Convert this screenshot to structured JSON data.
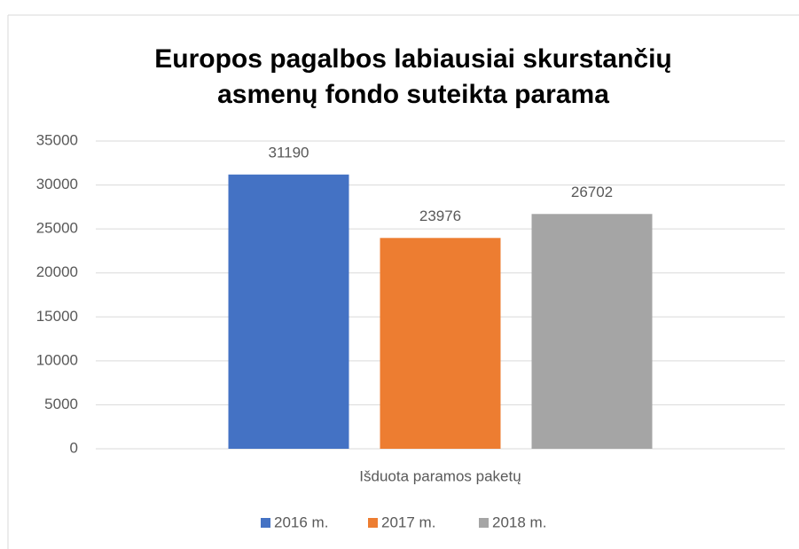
{
  "chart_data": {
    "type": "bar",
    "title": [
      "Europos pagalbos labiausiai skurstančių",
      "asmenų fondo suteikta parama"
    ],
    "categories": [
      "Išduota paramos paketų"
    ],
    "series": [
      {
        "name": "2016 m.",
        "color": "#4472c4",
        "values": [
          31190
        ]
      },
      {
        "name": "2017 m.",
        "color": "#ed7d31",
        "values": [
          23976
        ]
      },
      {
        "name": "2018 m.",
        "color": "#a5a5a5",
        "values": [
          26702
        ]
      }
    ],
    "ylim": [
      0,
      35000
    ],
    "yticks": [
      0,
      5000,
      10000,
      15000,
      20000,
      25000,
      30000,
      35000
    ],
    "grid": true,
    "legend": "bottom"
  }
}
